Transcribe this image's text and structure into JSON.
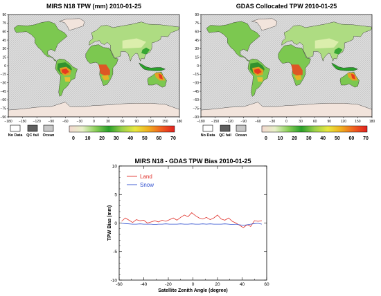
{
  "chart_data": [
    {
      "type": "heatmap",
      "title": "MIRS N18 TPW (mm) 2010-01-25",
      "x_ticks": [
        "−180",
        "−150",
        "−120",
        "−90",
        "−60",
        "−30",
        "0",
        "30",
        "60",
        "90",
        "120",
        "150",
        "180"
      ],
      "y_ticks": [
        "90",
        "75",
        "60",
        "45",
        "30",
        "15",
        "0",
        "−15",
        "−30",
        "−45",
        "−60",
        "−75",
        "−90"
      ],
      "flag_legend": [
        "No Data",
        "QC fail",
        "Ocean"
      ],
      "colorbar_ticks": [
        "0",
        "10",
        "20",
        "30",
        "40",
        "50",
        "60",
        "70"
      ],
      "colorbar_colors": [
        "#f3d8d0",
        "#e8f0c8",
        "#8cd05a",
        "#2aa02a",
        "#9ad04a",
        "#e8e840",
        "#f0b020",
        "#f06020",
        "#e02020"
      ]
    },
    {
      "type": "heatmap",
      "title": "GDAS Collocated TPW 2010-01-25",
      "x_ticks": [
        "−180",
        "−150",
        "−120",
        "−90",
        "−60",
        "−30",
        "0",
        "30",
        "60",
        "90",
        "120",
        "150",
        "180"
      ],
      "y_ticks": [
        "90",
        "75",
        "60",
        "45",
        "30",
        "15",
        "0",
        "−15",
        "−30",
        "−45",
        "−60",
        "−75",
        "−90"
      ],
      "flag_legend": [
        "No Data",
        "QC fail",
        "Ocean"
      ],
      "colorbar_ticks": [
        "0",
        "10",
        "20",
        "30",
        "40",
        "50",
        "60",
        "70"
      ],
      "colorbar_colors": [
        "#f3d8d0",
        "#e8f0c8",
        "#8cd05a",
        "#2aa02a",
        "#9ad04a",
        "#e8e840",
        "#f0b020",
        "#f06020",
        "#e02020"
      ]
    },
    {
      "type": "line",
      "title": "MIRS N18 - GDAS TPW Bias 2010-01-25",
      "xlabel": "Satellite Zenith Angle (degree)",
      "ylabel": "TPW Bias (mm)",
      "xlim": [
        -60,
        60
      ],
      "ylim": [
        -10,
        10
      ],
      "x_ticks": [
        -60,
        -40,
        -20,
        0,
        20,
        40,
        60
      ],
      "y_ticks": [
        -10,
        -5,
        0,
        5,
        10
      ],
      "legend_position": "top-left",
      "x": [
        -58,
        -55,
        -52,
        -49,
        -46,
        -43,
        -40,
        -37,
        -34,
        -31,
        -28,
        -25,
        -22,
        -19,
        -16,
        -13,
        -10,
        -7,
        -4,
        -1,
        2,
        5,
        8,
        11,
        14,
        17,
        20,
        23,
        26,
        29,
        32,
        35,
        38,
        41,
        44,
        47,
        50,
        53,
        56
      ],
      "series": [
        {
          "name": "Land",
          "color": "#e0302a",
          "values": [
            0.3,
            0.9,
            0.5,
            0.1,
            0.6,
            0.4,
            0.5,
            0.0,
            0.2,
            0.4,
            0.2,
            0.5,
            0.3,
            0.6,
            0.9,
            0.5,
            1.0,
            1.4,
            1.1,
            1.8,
            1.3,
            0.9,
            0.7,
            1.0,
            0.6,
            0.9,
            1.4,
            0.7,
            0.5,
            0.9,
            0.3,
            0.0,
            -0.4,
            -0.8,
            -0.3,
            -0.6,
            0.4,
            0.3,
            0.4
          ]
        },
        {
          "name": "Snow",
          "color": "#3050d0",
          "values": [
            -0.05,
            -0.1,
            -0.15,
            -0.2,
            -0.2,
            -0.15,
            -0.2,
            -0.2,
            -0.2,
            -0.25,
            -0.2,
            -0.2,
            -0.15,
            -0.2,
            -0.2,
            -0.2,
            -0.15,
            -0.2,
            -0.2,
            -0.15,
            -0.2,
            -0.2,
            -0.15,
            -0.2,
            -0.15,
            -0.2,
            -0.2,
            -0.2,
            -0.15,
            -0.2,
            -0.25,
            -0.2,
            -0.3,
            -0.4,
            -0.3,
            -0.2,
            -0.1,
            -0.05,
            -0.2
          ]
        }
      ]
    }
  ]
}
